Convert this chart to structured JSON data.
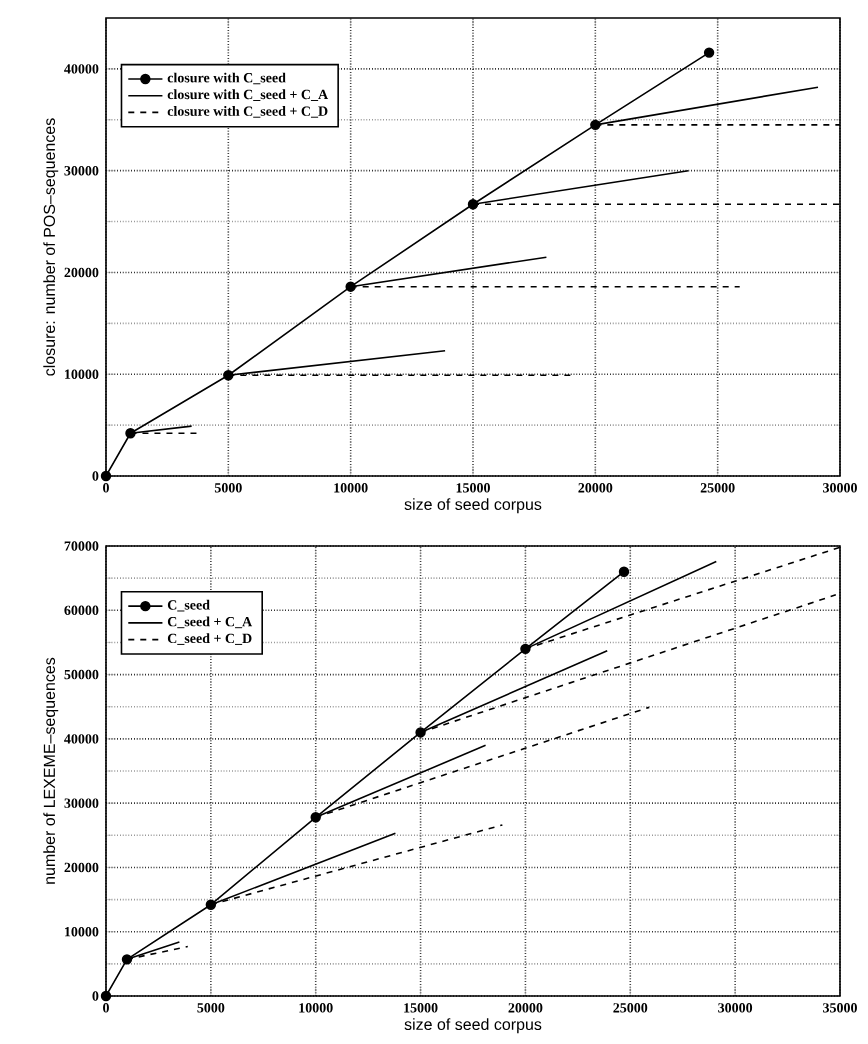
{
  "chart_data": [
    {
      "type": "line",
      "xlabel": "size of seed corpus",
      "ylabel": "closure: number of POS–sequences",
      "xlim": [
        0,
        30000
      ],
      "ylim": [
        0,
        45000
      ],
      "xticks": [
        0,
        5000,
        10000,
        15000,
        20000,
        25000,
        30000
      ],
      "yticks": [
        0,
        10000,
        20000,
        30000,
        40000
      ],
      "grid": true,
      "legend": "top left",
      "series": [
        {
          "name": "closure with C_seed",
          "color": "#000000",
          "marker": "circle",
          "line_style": "solid",
          "x": [
            0,
            1000,
            5000,
            10000,
            15000,
            20000,
            24650
          ],
          "values": [
            0,
            4200,
            9900,
            18600,
            26700,
            34500,
            41600
          ]
        },
        {
          "name": "closure with C_seed + C_A",
          "color": "#000000",
          "marker": "none",
          "line_style": "solid",
          "x": [
            1000,
            3500
          ],
          "values": [
            4200,
            4900
          ]
        },
        {
          "color": "#000000",
          "marker": "none",
          "line_style": "solid",
          "x": [
            5000,
            13860
          ],
          "values": [
            9900,
            12300
          ]
        },
        {
          "color": "#000000",
          "marker": "none",
          "line_style": "solid",
          "x": [
            10000,
            18000
          ],
          "values": [
            18600,
            21500
          ]
        },
        {
          "color": "#000000",
          "marker": "none",
          "line_style": "solid",
          "x": [
            15000,
            23800
          ],
          "values": [
            26700,
            30000
          ]
        },
        {
          "color": "#000000",
          "marker": "none",
          "line_style": "solid",
          "x": [
            20000,
            29100
          ],
          "values": [
            34500,
            38200
          ]
        },
        {
          "name": "closure with C_seed + C_D",
          "color": "#000000",
          "marker": "none",
          "line_style": "dashed",
          "x": [
            1000,
            3800
          ],
          "values": [
            4200,
            4200
          ]
        },
        {
          "color": "#000000",
          "marker": "none",
          "line_style": "dashed",
          "x": [
            5000,
            19100
          ],
          "values": [
            9900,
            9900
          ]
        },
        {
          "color": "#000000",
          "marker": "none",
          "line_style": "dashed",
          "x": [
            10000,
            25900
          ],
          "values": [
            18600,
            18600
          ]
        },
        {
          "color": "#000000",
          "marker": "none",
          "line_style": "dashed",
          "x": [
            15000,
            30000
          ],
          "values": [
            26700,
            26700
          ]
        },
        {
          "color": "#000000",
          "marker": "none",
          "line_style": "dashed",
          "x": [
            20000,
            30000
          ],
          "values": [
            34500,
            34500
          ]
        }
      ]
    },
    {
      "type": "line",
      "xlabel": "size of seed corpus",
      "ylabel": "number of LEXEME–sequences",
      "xlim": [
        0,
        35000
      ],
      "ylim": [
        0,
        70000
      ],
      "xticks": [
        0,
        5000,
        10000,
        15000,
        20000,
        25000,
        30000,
        35000
      ],
      "yticks": [
        0,
        10000,
        20000,
        30000,
        40000,
        50000,
        60000,
        70000
      ],
      "grid": true,
      "legend": "top left",
      "series": [
        {
          "name": "C_seed",
          "color": "#000000",
          "marker": "circle",
          "line_style": "solid",
          "x": [
            0,
            1000,
            5000,
            10000,
            15000,
            20000,
            24700
          ],
          "values": [
            0,
            5700,
            14200,
            27800,
            41000,
            54000,
            66000
          ]
        },
        {
          "name": "C_seed + C_A",
          "color": "#000000",
          "marker": "none",
          "line_style": "solid",
          "x": [
            1000,
            3500
          ],
          "values": [
            5700,
            8400
          ]
        },
        {
          "color": "#000000",
          "marker": "none",
          "line_style": "solid",
          "x": [
            5000,
            13800
          ],
          "values": [
            14200,
            25300
          ]
        },
        {
          "color": "#000000",
          "marker": "none",
          "line_style": "solid",
          "x": [
            10000,
            18100
          ],
          "values": [
            27800,
            39000
          ]
        },
        {
          "color": "#000000",
          "marker": "none",
          "line_style": "solid",
          "x": [
            15000,
            23900
          ],
          "values": [
            41000,
            53700
          ]
        },
        {
          "color": "#000000",
          "marker": "none",
          "line_style": "solid",
          "x": [
            20000,
            29100
          ],
          "values": [
            54000,
            67600
          ]
        },
        {
          "name": "C_seed + C_D",
          "color": "#000000",
          "marker": "none",
          "line_style": "dashed",
          "x": [
            1000,
            3900
          ],
          "values": [
            5700,
            7700
          ]
        },
        {
          "color": "#000000",
          "marker": "none",
          "line_style": "dashed",
          "x": [
            5000,
            18900
          ],
          "values": [
            14200,
            26600
          ]
        },
        {
          "color": "#000000",
          "marker": "none",
          "line_style": "dashed",
          "x": [
            10000,
            25900
          ],
          "values": [
            27800,
            44900
          ]
        },
        {
          "color": "#000000",
          "marker": "none",
          "line_style": "dashed",
          "x": [
            15000,
            34800
          ],
          "values": [
            41000,
            62400
          ]
        },
        {
          "color": "#000000",
          "marker": "none",
          "line_style": "dashed",
          "x": [
            20000,
            35000
          ],
          "values": [
            54000,
            69800
          ]
        }
      ]
    }
  ]
}
